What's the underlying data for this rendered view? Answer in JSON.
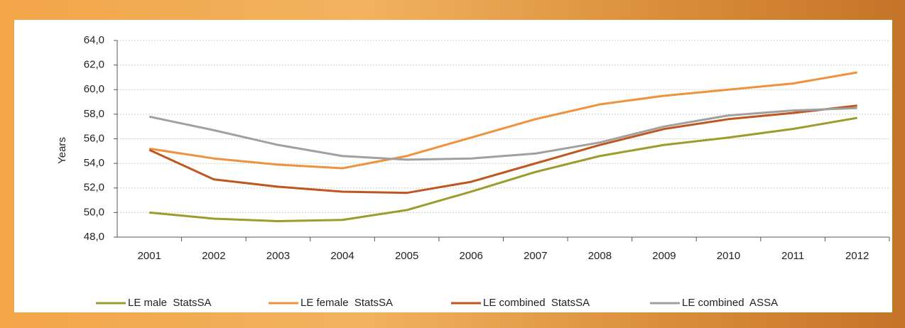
{
  "chart_data": {
    "type": "line",
    "y_label": "Years",
    "categories": [
      "2001",
      "2002",
      "2003",
      "2004",
      "2005",
      "2006",
      "2007",
      "2008",
      "2009",
      "2010",
      "2011",
      "2012"
    ],
    "series": [
      {
        "name": "LE male  StatsSA",
        "color": "#9c9c2c",
        "values": [
          50.0,
          49.5,
          49.3,
          49.4,
          50.2,
          51.7,
          53.3,
          54.6,
          55.5,
          56.1,
          56.8,
          57.7
        ]
      },
      {
        "name": "LE female  StatsSA",
        "color": "#f0913c",
        "values": [
          55.2,
          54.4,
          53.9,
          53.6,
          54.6,
          56.1,
          57.6,
          58.8,
          59.5,
          60.0,
          60.5,
          61.4
        ]
      },
      {
        "name": "LE combined  StatsSA",
        "color": "#c0561f",
        "values": [
          55.1,
          52.7,
          52.1,
          51.7,
          51.6,
          52.5,
          54.0,
          55.5,
          56.8,
          57.6,
          58.1,
          58.7
        ]
      },
      {
        "name": "LE combined  ASSA",
        "color": "#a0a0a0",
        "values": [
          57.8,
          56.7,
          55.5,
          54.6,
          54.3,
          54.4,
          54.8,
          55.7,
          57.0,
          57.9,
          58.3,
          58.5
        ]
      }
    ],
    "ylim": [
      48,
      64
    ],
    "yticks": [
      {
        "value": 48,
        "label": "48,0"
      },
      {
        "value": 50,
        "label": "50,0"
      },
      {
        "value": 52,
        "label": "52,0"
      },
      {
        "value": 54,
        "label": "54,0"
      },
      {
        "value": 56,
        "label": "56,0"
      },
      {
        "value": 58,
        "label": "58,0"
      },
      {
        "value": 60,
        "label": "60,0"
      },
      {
        "value": 62,
        "label": "62,0"
      },
      {
        "value": 64,
        "label": "64,0"
      }
    ],
    "grid": true,
    "legend": "bottom"
  }
}
